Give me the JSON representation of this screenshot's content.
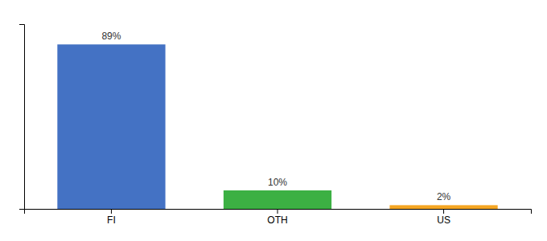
{
  "chart_data": {
    "type": "bar",
    "categories": [
      "FI",
      "OTH",
      "US"
    ],
    "values": [
      89,
      10,
      2
    ],
    "value_labels": [
      "89%",
      "10%",
      "2%"
    ],
    "data_labels": true,
    "colors": [
      "#4472c4",
      "#3cb043",
      "#f5a623"
    ],
    "ylim": [
      0,
      100
    ],
    "grid": false,
    "tick_labels": "x"
  }
}
